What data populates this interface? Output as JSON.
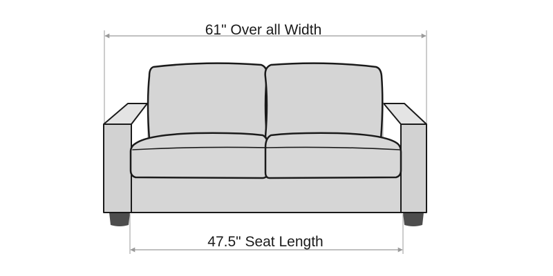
{
  "dimensions": {
    "overall_width": {
      "label": "61\" Over all Width",
      "value": 61,
      "unit": "in"
    },
    "seat_length": {
      "label": "47.5\" Seat Length",
      "value": 47.5,
      "unit": "in"
    }
  },
  "colors": {
    "upholstery": "#d5d5d5",
    "upholstery_shadow": "#c4c4c4",
    "outline": "#1a1a1a",
    "legs": "#4d4d4d",
    "dimension_line": "#9a9a9a"
  }
}
